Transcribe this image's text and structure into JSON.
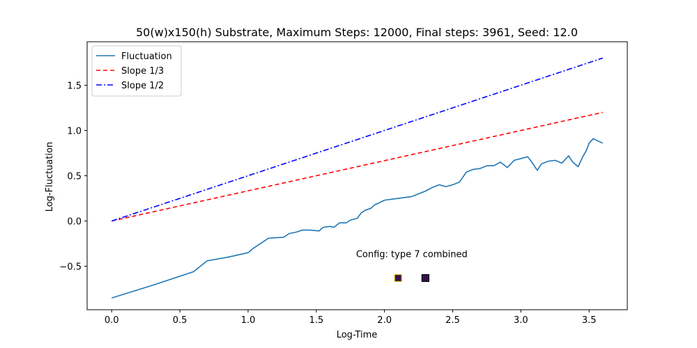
{
  "chart_data": {
    "type": "line",
    "title": "50(w)x150(h) Substrate, Maximum Steps: 12000, Final steps: 3961, Seed: 12.0",
    "xlabel": "Log-Time",
    "ylabel": "Log-Fluctuation",
    "xlim": [
      -0.18,
      3.78
    ],
    "ylim": [
      -0.98,
      1.98
    ],
    "xticks": [
      0.0,
      0.5,
      1.0,
      1.5,
      2.0,
      2.5,
      3.0,
      3.5
    ],
    "xtick_labels": [
      "0.0",
      "0.5",
      "1.0",
      "1.5",
      "2.0",
      "2.5",
      "3.0",
      "3.5"
    ],
    "yticks": [
      -0.5,
      0.0,
      0.5,
      1.0,
      1.5
    ],
    "ytick_labels": [
      "−0.5",
      "0.0",
      "0.5",
      "1.0",
      "1.5"
    ],
    "grid": false,
    "legend_position": "top-left",
    "series": [
      {
        "name": "Fluctuation",
        "color": "#1f77b4",
        "style": "solid",
        "points": [
          [
            0.0,
            -0.85
          ],
          [
            0.3,
            -0.71
          ],
          [
            0.6,
            -0.56
          ],
          [
            0.7,
            -0.44
          ],
          [
            0.85,
            -0.4
          ],
          [
            1.0,
            -0.35
          ],
          [
            1.04,
            -0.3
          ],
          [
            1.08,
            -0.26
          ],
          [
            1.15,
            -0.19
          ],
          [
            1.2,
            -0.185
          ],
          [
            1.26,
            -0.18
          ],
          [
            1.3,
            -0.14
          ],
          [
            1.36,
            -0.12
          ],
          [
            1.4,
            -0.1
          ],
          [
            1.45,
            -0.1
          ],
          [
            1.52,
            -0.11
          ],
          [
            1.55,
            -0.07
          ],
          [
            1.6,
            -0.06
          ],
          [
            1.63,
            -0.07
          ],
          [
            1.67,
            -0.02
          ],
          [
            1.72,
            -0.02
          ],
          [
            1.75,
            0.01
          ],
          [
            1.8,
            0.03
          ],
          [
            1.83,
            0.09
          ],
          [
            1.86,
            0.12
          ],
          [
            1.9,
            0.14
          ],
          [
            1.93,
            0.18
          ],
          [
            1.96,
            0.2
          ],
          [
            2.0,
            0.23
          ],
          [
            2.05,
            0.24
          ],
          [
            2.1,
            0.25
          ],
          [
            2.15,
            0.26
          ],
          [
            2.2,
            0.27
          ],
          [
            2.25,
            0.3
          ],
          [
            2.3,
            0.33
          ],
          [
            2.35,
            0.37
          ],
          [
            2.4,
            0.4
          ],
          [
            2.45,
            0.38
          ],
          [
            2.5,
            0.4
          ],
          [
            2.55,
            0.43
          ],
          [
            2.6,
            0.54
          ],
          [
            2.65,
            0.57
          ],
          [
            2.7,
            0.58
          ],
          [
            2.75,
            0.61
          ],
          [
            2.8,
            0.61
          ],
          [
            2.85,
            0.65
          ],
          [
            2.9,
            0.59
          ],
          [
            2.95,
            0.67
          ],
          [
            3.0,
            0.69
          ],
          [
            3.05,
            0.71
          ],
          [
            3.08,
            0.65
          ],
          [
            3.12,
            0.56
          ],
          [
            3.15,
            0.63
          ],
          [
            3.2,
            0.66
          ],
          [
            3.25,
            0.67
          ],
          [
            3.3,
            0.64
          ],
          [
            3.35,
            0.72
          ],
          [
            3.38,
            0.65
          ],
          [
            3.42,
            0.6
          ],
          [
            3.45,
            0.7
          ],
          [
            3.48,
            0.78
          ],
          [
            3.5,
            0.86
          ],
          [
            3.53,
            0.91
          ],
          [
            3.57,
            0.88
          ],
          [
            3.6,
            0.86
          ]
        ]
      },
      {
        "name": "Slope 1/3",
        "color": "#ff0000",
        "style": "dashed",
        "points": [
          [
            0.0,
            0.0
          ],
          [
            3.6,
            1.2
          ]
        ]
      },
      {
        "name": "Slope 1/2",
        "color": "#0000ff",
        "style": "dashdot",
        "points": [
          [
            0.0,
            0.0
          ],
          [
            3.6,
            1.8
          ]
        ]
      }
    ],
    "annotation": {
      "text": "Config:  type 7 combined",
      "x": 2.2,
      "y": -0.4
    },
    "markers": [
      {
        "x": 2.1,
        "y": -0.63,
        "fill": "#3b0f4f",
        "edge": "#d4c800"
      },
      {
        "x": 2.3,
        "y": -0.63,
        "fill": "#3b0f4f",
        "edge": "#000000"
      }
    ]
  }
}
